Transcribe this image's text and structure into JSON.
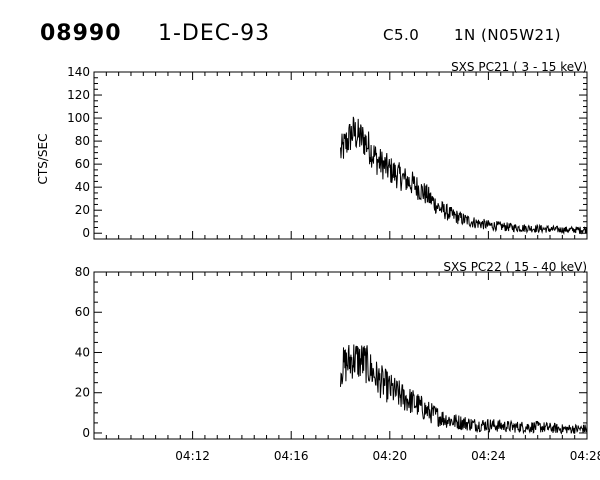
{
  "header": {
    "event_id": "08990",
    "date": "1-DEC-93",
    "flare_class": "C5.0",
    "optical": "1N (N05W21)"
  },
  "chart_data": [
    {
      "type": "line",
      "title": "SXS PC21  (  3 - 15 keV)",
      "ylabel": "CTS/SEC",
      "xlabel": "",
      "xlim": [
        "04:08",
        "04:28"
      ],
      "ylim": [
        -5,
        140
      ],
      "yticks": [
        0,
        20,
        40,
        60,
        80,
        100,
        120,
        140
      ],
      "xticks": [
        "04:12",
        "04:16",
        "04:20",
        "04:24",
        "04:28"
      ],
      "grid": false,
      "series": [
        {
          "x": [
            "04:18:00",
            "04:18:30",
            "04:19:00",
            "04:19:30",
            "04:20:00",
            "04:20:30",
            "04:21:00",
            "04:21:30",
            "04:22:00",
            "04:22:30",
            "04:23:00",
            "04:23:30",
            "04:24:00",
            "04:25:00",
            "04:26:00",
            "04:27:00",
            "04:28:00"
          ],
          "y": [
            70,
            88,
            80,
            63,
            55,
            48,
            42,
            33,
            22,
            16,
            12,
            9,
            7,
            5,
            4,
            3,
            3
          ]
        }
      ]
    },
    {
      "type": "line",
      "title": "SXS PC22  ( 15 - 40 keV)",
      "ylabel": "",
      "xlabel": "",
      "xlim": [
        "04:08",
        "04:28"
      ],
      "ylim": [
        -3,
        80
      ],
      "yticks": [
        0,
        20,
        40,
        60,
        80
      ],
      "xticks": [
        "04:12",
        "04:16",
        "04:20",
        "04:24",
        "04:28"
      ],
      "grid": false,
      "series": [
        {
          "x": [
            "04:18:00",
            "04:18:30",
            "04:19:00",
            "04:19:30",
            "04:20:00",
            "04:20:30",
            "04:21:00",
            "04:21:30",
            "04:22:00",
            "04:22:30",
            "04:23:00",
            "04:23:30",
            "04:24:00",
            "04:25:00",
            "04:26:00",
            "04:27:00",
            "04:28:00"
          ],
          "y": [
            32,
            37,
            35,
            27,
            22,
            18,
            15,
            11,
            8,
            6,
            5,
            4,
            4,
            3,
            3,
            2,
            2
          ]
        }
      ]
    }
  ]
}
